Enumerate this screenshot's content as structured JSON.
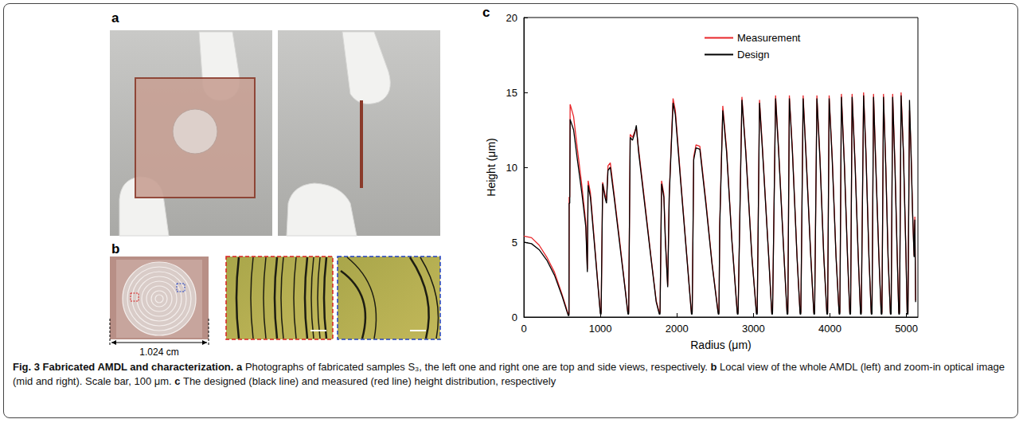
{
  "figure": {
    "panels": [
      {
        "letter": "a"
      },
      {
        "letter": "b",
        "dimension_label": "1.024 cm"
      },
      {
        "letter": "c"
      }
    ],
    "caption": {
      "title": "Fig. 3 Fabricated AMDL and characterization.",
      "parts": [
        {
          "letter": "a",
          "text": "Photographs of fabricated samples S₃, the left one and right one are top and side views, respectively."
        },
        {
          "letter": "b",
          "text": "Local view of the whole AMDL (left) and zoom-in optical image (mid and right). Scale bar, 100 μm."
        },
        {
          "letter": "c",
          "text": "The designed (black line) and measured (red line) height distribution, respectively"
        }
      ]
    }
  },
  "chart_data": {
    "type": "line",
    "x_label": "Radius (μm)",
    "y_label": "Height (μm)",
    "xlim": [
      0,
      5150
    ],
    "xticks": [
      0,
      1000,
      2000,
      3000,
      4000,
      5000
    ],
    "ylim": [
      0,
      20
    ],
    "yticks": [
      0,
      5,
      10,
      15,
      20
    ],
    "grid": false,
    "legend": "upper right",
    "x": [
      0,
      100,
      200,
      300,
      400,
      500,
      580,
      590,
      592,
      600,
      605,
      650,
      700,
      760,
      810,
      830,
      840,
      870,
      920,
      970,
      1000,
      1010,
      1030,
      1060,
      1080,
      1100,
      1130,
      1180,
      1250,
      1320,
      1360,
      1370,
      1390,
      1420,
      1450,
      1470,
      1500,
      1580,
      1660,
      1730,
      1770,
      1780,
      1800,
      1830,
      1850,
      1880,
      1900,
      1950,
      1980,
      2050,
      2130,
      2190,
      2200,
      2220,
      2250,
      2300,
      2380,
      2460,
      2540,
      2550,
      2560,
      2600,
      2650,
      2720,
      2790,
      2800,
      2850,
      2900,
      2980,
      3040,
      3050,
      3080,
      3120,
      3200,
      3240,
      3250,
      3290,
      3330,
      3400,
      3440,
      3450,
      3470,
      3510,
      3570,
      3610,
      3620,
      3650,
      3690,
      3750,
      3790,
      3800,
      3830,
      3870,
      3920,
      3960,
      3970,
      3990,
      4030,
      4080,
      4120,
      4130,
      4150,
      4190,
      4230,
      4260,
      4270,
      4290,
      4330,
      4370,
      4400,
      4410,
      4440,
      4470,
      4510,
      4540,
      4550,
      4570,
      4600,
      4640,
      4670,
      4680,
      4700,
      4730,
      4760,
      4790,
      4800,
      4820,
      4850,
      4880,
      4900,
      4910,
      4930,
      4960,
      4990,
      5010,
      5020,
      5040,
      5060,
      5080,
      5100,
      5110,
      5120
    ],
    "series": [
      {
        "name": "Measurement",
        "color": "#e8262a",
        "values": [
          5.4,
          5.3,
          4.8,
          4.0,
          3.0,
          1.5,
          0.2,
          0.2,
          8.0,
          8.0,
          14.2,
          13.4,
          11.2,
          8.7,
          6.3,
          3.2,
          9.1,
          8.3,
          5.2,
          2.1,
          0.3,
          0.3,
          9.0,
          8.2,
          7.8,
          10.1,
          10.3,
          8.2,
          5.2,
          2.1,
          0.3,
          0.3,
          12.2,
          12.0,
          12.4,
          12.6,
          11.2,
          7.7,
          4.1,
          1.1,
          0.3,
          0.3,
          9.1,
          8.2,
          5.2,
          2.1,
          8.2,
          14.6,
          13.8,
          9.2,
          4.1,
          0.3,
          0.3,
          10.7,
          11.5,
          11.4,
          7.7,
          3.6,
          0.3,
          0.3,
          6.2,
          14.1,
          11.2,
          5.1,
          0.3,
          0.3,
          14.7,
          11.2,
          4.1,
          0.3,
          0.3,
          14.5,
          11.2,
          4.1,
          0.3,
          0.3,
          14.8,
          11.2,
          4.1,
          0.3,
          0.3,
          14.8,
          11.2,
          4.1,
          0.3,
          0.3,
          14.8,
          10.7,
          4.1,
          0.3,
          0.3,
          14.8,
          10.7,
          4.1,
          0.3,
          0.3,
          14.8,
          10.7,
          4.1,
          0.3,
          0.3,
          14.9,
          10.2,
          4.1,
          0.3,
          0.3,
          14.9,
          10.2,
          4.1,
          0.3,
          0.3,
          15.0,
          11.2,
          4.1,
          0.3,
          0.3,
          14.9,
          10.2,
          4.1,
          0.3,
          0.3,
          14.9,
          10.2,
          4.1,
          0.3,
          0.3,
          14.9,
          10.2,
          4.1,
          0.3,
          0.3,
          15.0,
          11.2,
          5.1,
          0.3,
          0.3,
          13.8,
          11.2,
          7.1,
          4.1,
          6.7,
          1.1
        ]
      },
      {
        "name": "Design",
        "color": "#000000",
        "values": [
          5.0,
          4.9,
          4.5,
          3.8,
          2.8,
          1.4,
          0.1,
          0.1,
          7.6,
          7.6,
          13.2,
          12.5,
          10.5,
          8.2,
          6,
          3,
          8.8,
          8,
          5,
          2,
          0.2,
          0.2,
          8.9,
          8,
          7.6,
          9.8,
          10,
          8,
          5,
          2,
          0.2,
          0.2,
          12,
          11.8,
          12.3,
          12.8,
          11,
          7.5,
          4,
          1,
          0.2,
          0.2,
          8.9,
          8,
          5,
          2,
          8,
          14.3,
          13.5,
          9,
          4,
          0.2,
          0.2,
          10.5,
          11.3,
          11.2,
          7.5,
          3.5,
          0.2,
          0.2,
          6,
          13.8,
          11,
          5,
          0.2,
          0.2,
          14.5,
          11,
          4,
          0.2,
          0.2,
          14.3,
          11,
          4,
          0.2,
          0.2,
          14.6,
          11,
          4,
          0.2,
          0.2,
          14.6,
          11,
          4,
          0.2,
          0.2,
          14.6,
          10.5,
          4,
          0.2,
          0.2,
          14.6,
          10.5,
          4,
          0.2,
          0.2,
          14.6,
          10.5,
          4,
          0.2,
          0.2,
          14.7,
          10,
          4,
          0.2,
          0.2,
          14.7,
          10,
          4,
          0.2,
          0.2,
          14.8,
          11,
          4,
          0.2,
          0.2,
          14.7,
          10,
          4,
          0.2,
          0.2,
          14.7,
          10,
          4,
          0.2,
          0.2,
          14.7,
          10,
          4,
          0.2,
          0.2,
          14.8,
          11,
          5,
          0.2,
          0.2,
          14.5,
          11,
          7,
          4,
          6.5,
          1
        ]
      }
    ]
  }
}
